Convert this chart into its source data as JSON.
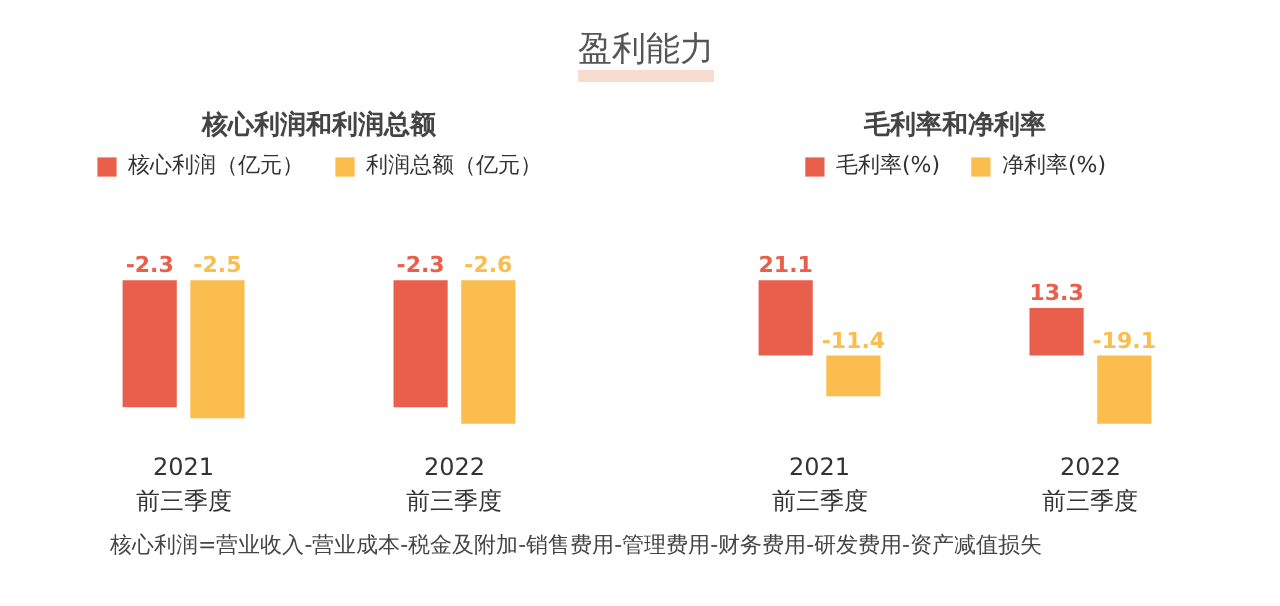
{
  "chart_data": [
    {
      "type": "bar",
      "title": "核心利润和利润总额",
      "categories": [
        "2021\n前三季度",
        "2022\n前三季度"
      ],
      "series": [
        {
          "name": "核心利润（亿元）",
          "color": "#e8604c",
          "values": [
            -2.3,
            -2.3
          ]
        },
        {
          "name": "利润总额（亿元）",
          "color": "#fbbd4d",
          "values": [
            -2.5,
            -2.6
          ]
        }
      ],
      "data_labels": true,
      "legend": "top",
      "annotations": [
        "盈利能力",
        "核心利润=营业收入-营业成本-税金及附加-销售费用-管理费用-财务费用-研发费用-资产减值损失"
      ]
    },
    {
      "type": "bar",
      "title": "毛利率和净利率",
      "categories": [
        "2021\n前三季度",
        "2022\n前三季度"
      ],
      "series": [
        {
          "name": "毛利率(%)",
          "color": "#e8604c",
          "values": [
            21.1,
            13.3
          ]
        },
        {
          "name": "净利率(%)",
          "color": "#fbbd4d",
          "values": [
            -11.4,
            -19.1
          ]
        }
      ],
      "data_labels": true,
      "legend": "top"
    }
  ]
}
